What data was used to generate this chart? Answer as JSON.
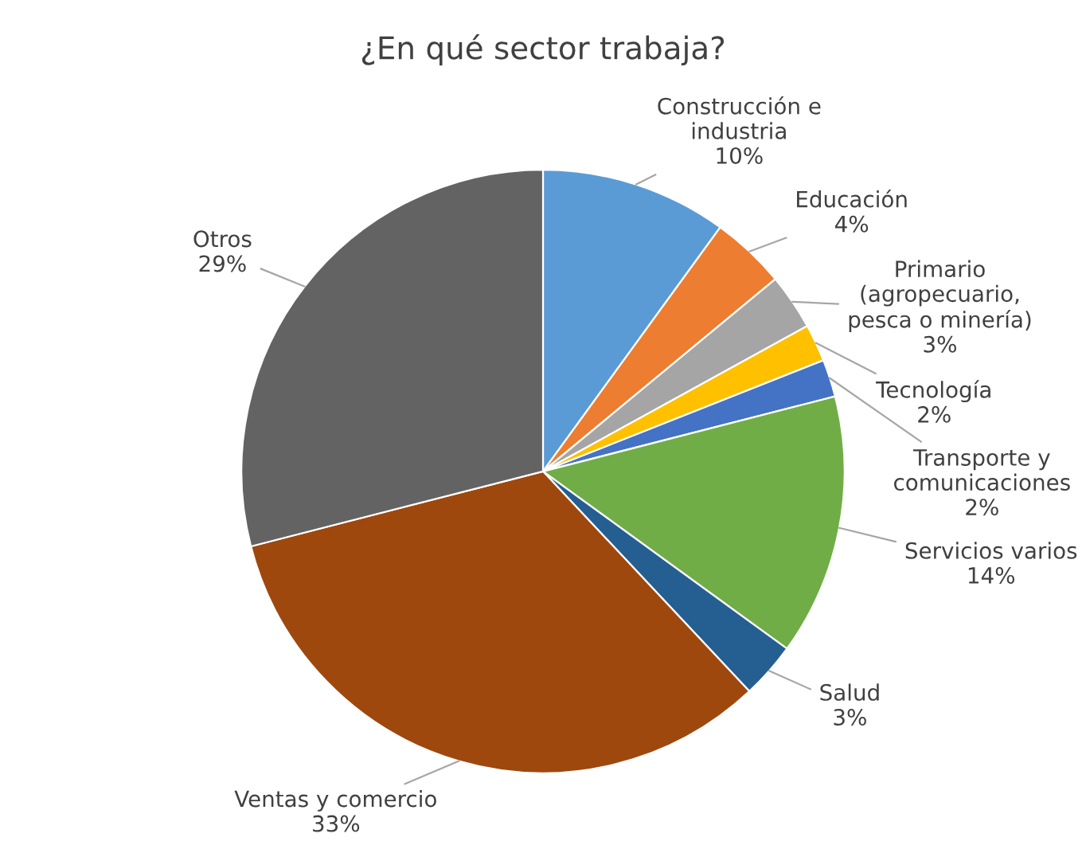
{
  "chart_data": {
    "type": "pie",
    "title": "¿En qué sector trabaja?",
    "categories": [
      "Construcción e\nindustria",
      "Educación",
      "Primario\n(agropecuario,\npesca o minería)",
      "Tecnología",
      "Transporte y\ncomunicaciones",
      "Servicios varios",
      "Salud",
      "Ventas y comercio",
      "Otros"
    ],
    "values": [
      10,
      4,
      3,
      2,
      2,
      14,
      3,
      33,
      29
    ],
    "value_labels": [
      "10%",
      "4%",
      "3%",
      "2%",
      "2%",
      "14%",
      "3%",
      "33%",
      "29%"
    ],
    "colors": [
      "#5b9bd5",
      "#ed7d31",
      "#a5a5a5",
      "#ffc000",
      "#4472c4",
      "#70ad47",
      "#255e91",
      "#9e480e",
      "#636363"
    ]
  }
}
